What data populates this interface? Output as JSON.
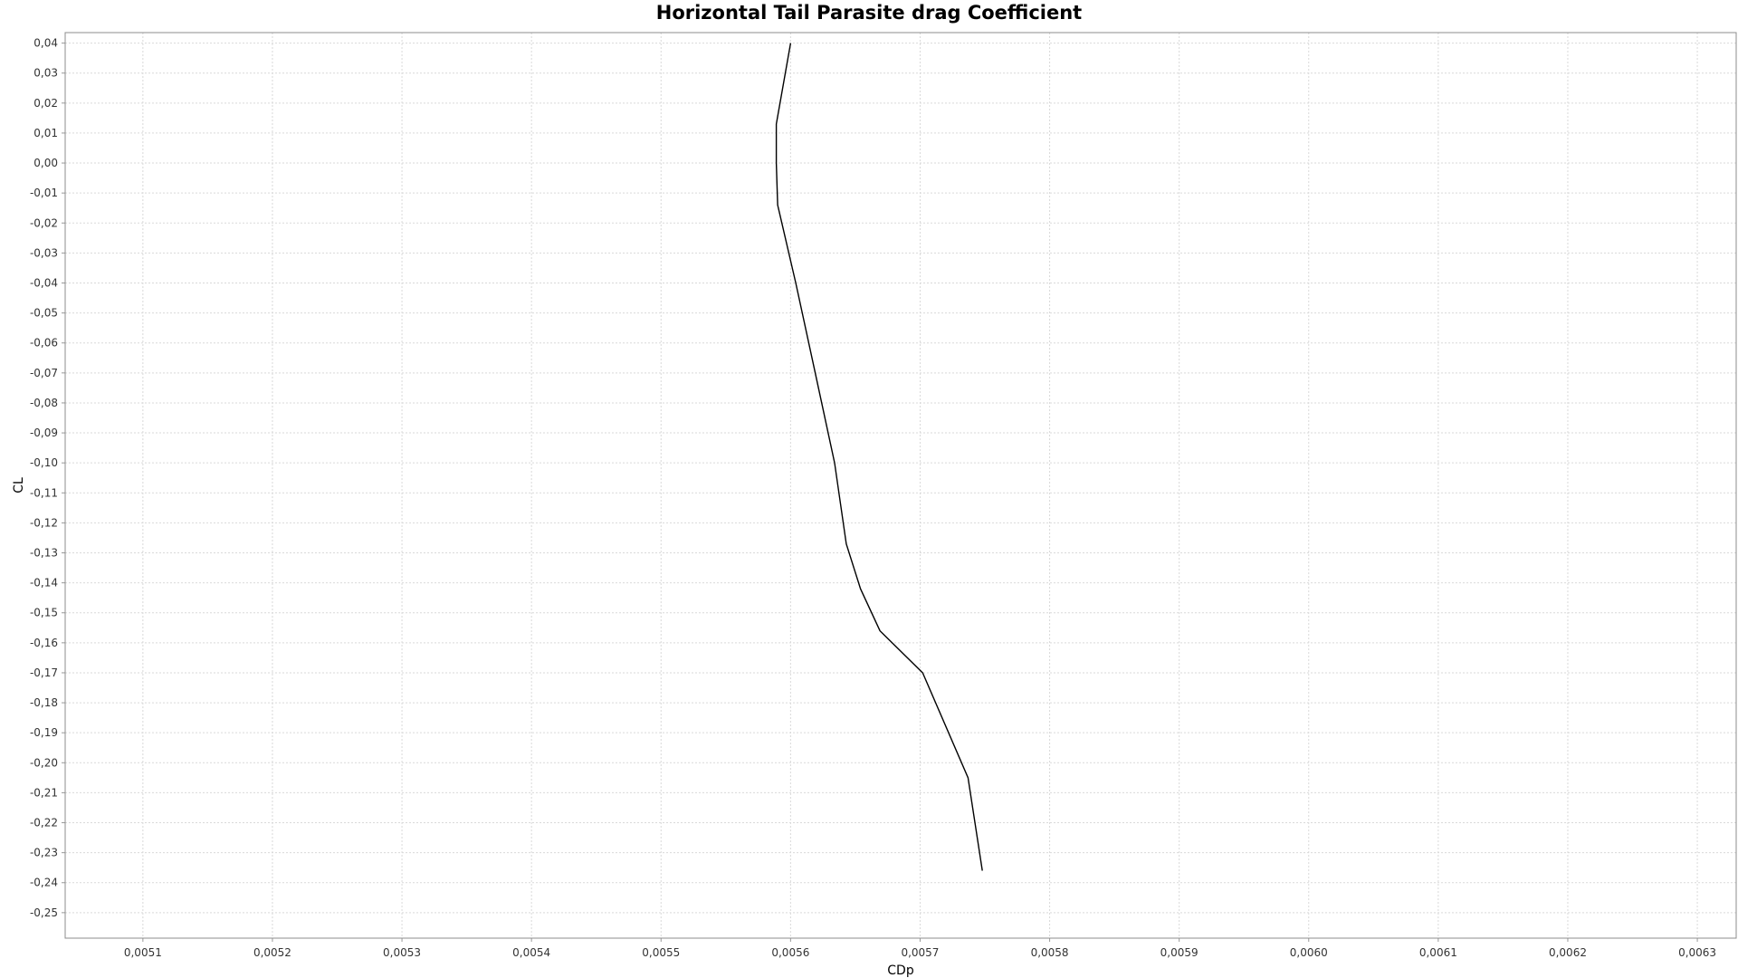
{
  "chart_data": {
    "type": "line",
    "title": "Horizontal Tail Parasite drag Coefficient",
    "xlabel": "CDp",
    "ylabel": "CL",
    "xlim": [
      0.00504,
      0.00633
    ],
    "ylim": [
      -0.2585,
      0.0435
    ],
    "x_ticks": [
      "0,0051",
      "0,0052",
      "0,0053",
      "0,0054",
      "0,0055",
      "0,0056",
      "0,0057",
      "0,0058",
      "0,0059",
      "0,0060",
      "0,0061",
      "0,0062",
      "0,0063"
    ],
    "x_tick_values": [
      0.0051,
      0.0052,
      0.0053,
      0.0054,
      0.0055,
      0.0056,
      0.0057,
      0.0058,
      0.0059,
      0.006,
      0.0061,
      0.0062,
      0.0063
    ],
    "y_ticks": [
      "0,04",
      "0,03",
      "0,02",
      "0,01",
      "0,00",
      "-0,01",
      "-0,02",
      "-0,03",
      "-0,04",
      "-0,05",
      "-0,06",
      "-0,07",
      "-0,08",
      "-0,09",
      "-0,10",
      "-0,11",
      "-0,12",
      "-0,13",
      "-0,14",
      "-0,15",
      "-0,16",
      "-0,17",
      "-0,18",
      "-0,19",
      "-0,20",
      "-0,21",
      "-0,22",
      "-0,23",
      "-0,24",
      "-0,25"
    ],
    "y_tick_values": [
      0.04,
      0.03,
      0.02,
      0.01,
      0.0,
      -0.01,
      -0.02,
      -0.03,
      -0.04,
      -0.05,
      -0.06,
      -0.07,
      -0.08,
      -0.09,
      -0.1,
      -0.11,
      -0.12,
      -0.13,
      -0.14,
      -0.15,
      -0.16,
      -0.17,
      -0.18,
      -0.19,
      -0.2,
      -0.21,
      -0.22,
      -0.23,
      -0.24,
      -0.25
    ],
    "grid": true,
    "legend": "none",
    "series": [
      {
        "color": "#000000",
        "x": [
          0.0056,
          0.005589,
          0.005589,
          0.00559,
          0.005604,
          0.005619,
          0.005634,
          0.005643,
          0.005654,
          0.005669,
          0.005702,
          0.005737,
          0.005748
        ],
        "y": [
          0.04,
          0.013,
          0.0,
          -0.014,
          -0.04,
          -0.07,
          -0.1,
          -0.127,
          -0.142,
          -0.156,
          -0.17,
          -0.205,
          -0.236
        ]
      }
    ]
  }
}
